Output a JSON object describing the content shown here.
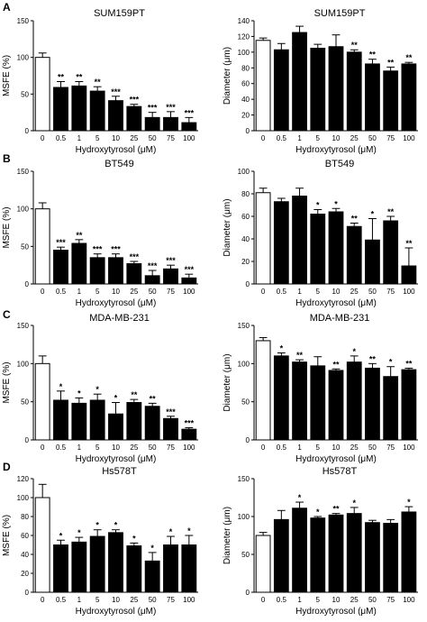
{
  "chart_data": [
    {
      "type": "bar",
      "panel": "A",
      "title": "SUM159PT",
      "xlabel": "Hydroxytyrosol (μM)",
      "ylabel": "MSFE (%)",
      "categories": [
        "0",
        "0.5",
        "1",
        "5",
        "10",
        "25",
        "50",
        "75",
        "100"
      ],
      "values": [
        100,
        59,
        61,
        54,
        41,
        33,
        18,
        18,
        11
      ],
      "errors": [
        6,
        8,
        6,
        6,
        6,
        3,
        7,
        8,
        7
      ],
      "significance": [
        "",
        "**",
        "**",
        "**",
        "***",
        "***",
        "***",
        "***",
        "***"
      ],
      "ylim": [
        0,
        150
      ],
      "yticks": [
        "0",
        "50",
        "100",
        "150"
      ],
      "first_bar_fill": "#ffffff",
      "bar_fill": "#000000"
    },
    {
      "type": "bar",
      "panel": "",
      "title": "SUM159PT",
      "xlabel": "Hydroxytyrosol (μM)",
      "ylabel": "Diameter (μm)",
      "categories": [
        "0",
        "0.5",
        "1",
        "5",
        "10",
        "25",
        "50",
        "75",
        "100"
      ],
      "values": [
        115,
        103,
        125,
        105,
        107,
        100,
        85,
        76,
        85
      ],
      "errors": [
        3,
        8,
        8,
        5,
        15,
        3,
        6,
        5,
        2
      ],
      "significance": [
        "",
        "",
        "",
        "",
        "",
        "**",
        "**",
        "**",
        "**"
      ],
      "ylim": [
        0,
        140
      ],
      "yticks": [
        "0",
        "20",
        "40",
        "60",
        "80",
        "100",
        "120",
        "140"
      ],
      "first_bar_fill": "#ffffff",
      "bar_fill": "#000000"
    },
    {
      "type": "bar",
      "panel": "B",
      "title": "BT549",
      "xlabel": "Hydroxytyrosol (μM)",
      "ylabel": "MSFE (%)",
      "categories": [
        "0",
        "0.5",
        "1",
        "5",
        "10",
        "25",
        "50",
        "75",
        "100"
      ],
      "values": [
        100,
        45,
        54,
        35,
        35,
        27,
        11,
        20,
        8
      ],
      "errors": [
        8,
        4,
        5,
        5,
        5,
        3,
        7,
        5,
        5
      ],
      "significance": [
        "",
        "***",
        "**",
        "***",
        "***",
        "***",
        "***",
        "***",
        "***"
      ],
      "ylim": [
        0,
        150
      ],
      "yticks": [
        "0",
        "50",
        "100",
        "150"
      ],
      "first_bar_fill": "#ffffff",
      "bar_fill": "#000000"
    },
    {
      "type": "bar",
      "panel": "",
      "title": "BT549",
      "xlabel": "Hydroxytyrosol (μM)",
      "ylabel": "Diameter (μm)",
      "categories": [
        "0",
        "0.5",
        "1",
        "5",
        "10",
        "25",
        "50",
        "75",
        "100"
      ],
      "values": [
        81,
        73,
        78,
        62,
        64,
        51,
        39,
        56,
        16
      ],
      "errors": [
        4,
        3,
        7,
        4,
        3,
        3,
        19,
        4,
        16
      ],
      "significance": [
        "",
        "",
        "",
        "*",
        "*",
        "**",
        "*",
        "**",
        "**"
      ],
      "ylim": [
        0,
        100
      ],
      "yticks": [
        "0",
        "20",
        "40",
        "60",
        "80",
        "100"
      ],
      "first_bar_fill": "#ffffff",
      "bar_fill": "#000000"
    },
    {
      "type": "bar",
      "panel": "C",
      "title": "MDA-MB-231",
      "xlabel": "Hydroxytyrosol (μM)",
      "ylabel": "MSFE (%)",
      "categories": [
        "0",
        "0.5",
        "1",
        "5",
        "10",
        "25",
        "50",
        "75",
        "100"
      ],
      "values": [
        100,
        52,
        48,
        52,
        34,
        49,
        44,
        28,
        14
      ],
      "errors": [
        10,
        12,
        7,
        8,
        15,
        4,
        4,
        3,
        2
      ],
      "significance": [
        "",
        "*",
        "*",
        "*",
        "*",
        "**",
        "**",
        "***",
        "***"
      ],
      "ylim": [
        0,
        150
      ],
      "yticks": [
        "0",
        "50",
        "100",
        "150"
      ],
      "first_bar_fill": "#ffffff",
      "bar_fill": "#000000"
    },
    {
      "type": "bar",
      "panel": "",
      "title": "MDA-MB-231",
      "xlabel": "Hydroxytyrosol (μM)",
      "ylabel": "Diameter (μm)",
      "categories": [
        "0",
        "0.5",
        "1",
        "5",
        "10",
        "25",
        "50",
        "75",
        "100"
      ],
      "values": [
        130,
        110,
        102,
        97,
        91,
        102,
        94,
        83,
        92
      ],
      "errors": [
        4,
        4,
        3,
        12,
        2,
        8,
        6,
        13,
        2
      ],
      "significance": [
        "",
        "*",
        "**",
        "",
        "**",
        "*",
        "**",
        "*",
        "**"
      ],
      "ylim": [
        0,
        150
      ],
      "yticks": [
        "0",
        "50",
        "100",
        "150"
      ],
      "first_bar_fill": "#ffffff",
      "bar_fill": "#000000"
    },
    {
      "type": "bar",
      "panel": "D",
      "title": "Hs578T",
      "xlabel": "Hydroxytyrosol (μM)",
      "ylabel": "MSFE (%)",
      "categories": [
        "0",
        "0.5",
        "1",
        "5",
        "10",
        "25",
        "50",
        "75",
        "100"
      ],
      "values": [
        100,
        50,
        53,
        59,
        63,
        49,
        33,
        50,
        50
      ],
      "errors": [
        14,
        5,
        5,
        7,
        3,
        3,
        9,
        9,
        10
      ],
      "significance": [
        "",
        "*",
        "*",
        "*",
        "*",
        "*",
        "*",
        "*",
        "*"
      ],
      "ylim": [
        0,
        120
      ],
      "yticks": [
        "0",
        "20",
        "40",
        "60",
        "80",
        "100",
        "120"
      ],
      "first_bar_fill": "#ffffff",
      "bar_fill": "#000000"
    },
    {
      "type": "bar",
      "panel": "",
      "title": "Hs578T",
      "xlabel": "Hydroxytyrosol (μM)",
      "ylabel": "Diameter (μm)",
      "categories": [
        "0",
        "0.5",
        "1",
        "5",
        "10",
        "25",
        "50",
        "75",
        "100"
      ],
      "values": [
        75,
        96,
        111,
        98,
        102,
        104,
        92,
        91,
        106
      ],
      "errors": [
        4,
        12,
        8,
        2,
        2,
        8,
        3,
        5,
        7
      ],
      "significance": [
        "",
        "",
        "*",
        "*",
        "**",
        "*",
        "",
        "",
        "*"
      ],
      "ylim": [
        0,
        150
      ],
      "yticks": [
        "0",
        "50",
        "100",
        "150"
      ],
      "first_bar_fill": "#ffffff",
      "bar_fill": "#000000"
    }
  ]
}
